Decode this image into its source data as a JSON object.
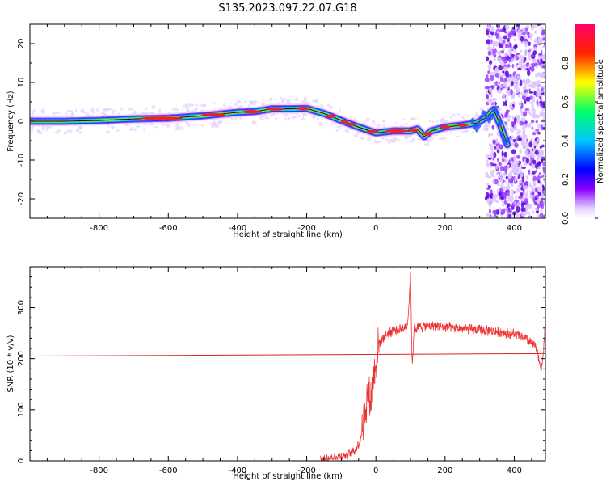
{
  "title": "S135.2023.097.22.07.G18",
  "chart_data": [
    {
      "type": "heatmap",
      "name": "spectrogram",
      "xlabel": "Height of straight line (km)",
      "ylabel": "Frequency (Hz)",
      "xlim": [
        -1000,
        490
      ],
      "ylim": [
        -25,
        25
      ],
      "xticks": [
        -800,
        -600,
        -400,
        -200,
        0,
        200,
        400
      ],
      "yticks": [
        -20,
        -10,
        0,
        10,
        20
      ],
      "colorbar": {
        "label": "Normalized spectral amplitude",
        "range": [
          0,
          1
        ],
        "ticks": [
          0.0,
          0.2,
          0.4,
          0.6,
          0.8
        ]
      },
      "ridge": {
        "x": [
          -1000,
          -900,
          -800,
          -700,
          -650,
          -600,
          -500,
          -400,
          -350,
          -300,
          -250,
          -200,
          -150,
          -100,
          -50,
          0,
          50,
          100,
          120,
          140,
          160,
          200,
          250,
          290,
          320,
          340,
          360,
          380
        ],
        "frequency": [
          0.0,
          0.0,
          0.2,
          0.6,
          0.7,
          0.8,
          1.4,
          2.3,
          2.5,
          3.2,
          3.2,
          3.3,
          2.0,
          0.2,
          -1.5,
          -3.0,
          -2.5,
          -2.5,
          -2.0,
          -4.0,
          -2.5,
          -1.5,
          -1.0,
          -0.5,
          1.0,
          3.0,
          -1.0,
          -6.0
        ]
      },
      "noise_region_start": 340,
      "grid": false
    },
    {
      "type": "line",
      "name": "snr",
      "xlabel": "Height of straight line (km)",
      "ylabel": "SNR (10 * v/v)",
      "xlim": [
        -1000,
        490
      ],
      "ylim": [
        0,
        380
      ],
      "xticks": [
        -800,
        -600,
        -400,
        -200,
        0,
        200,
        400
      ],
      "yticks": [
        0,
        100,
        200,
        300
      ],
      "reference_line": {
        "y_start": 205,
        "y_end": 210
      },
      "series": [
        {
          "color": "#ee3333",
          "x": [
            -160,
            -120,
            -90,
            -60,
            -45,
            -35,
            -25,
            -15,
            -5,
            0,
            5,
            10,
            20,
            30,
            50,
            70,
            90,
            95,
            100,
            105,
            110,
            130,
            160,
            200,
            250,
            300,
            350,
            400,
            430,
            460,
            480,
            490
          ],
          "y": [
            5,
            8,
            10,
            20,
            40,
            80,
            130,
            120,
            170,
            195,
            215,
            230,
            240,
            248,
            255,
            258,
            262,
            300,
            375,
            180,
            258,
            262,
            265,
            262,
            258,
            256,
            253,
            248,
            240,
            225,
            180,
            270
          ]
        }
      ],
      "grid": false
    }
  ],
  "colors": {
    "snr_line": "#ee3333",
    "reference_line": "#dd2222",
    "axis": "#000000"
  }
}
